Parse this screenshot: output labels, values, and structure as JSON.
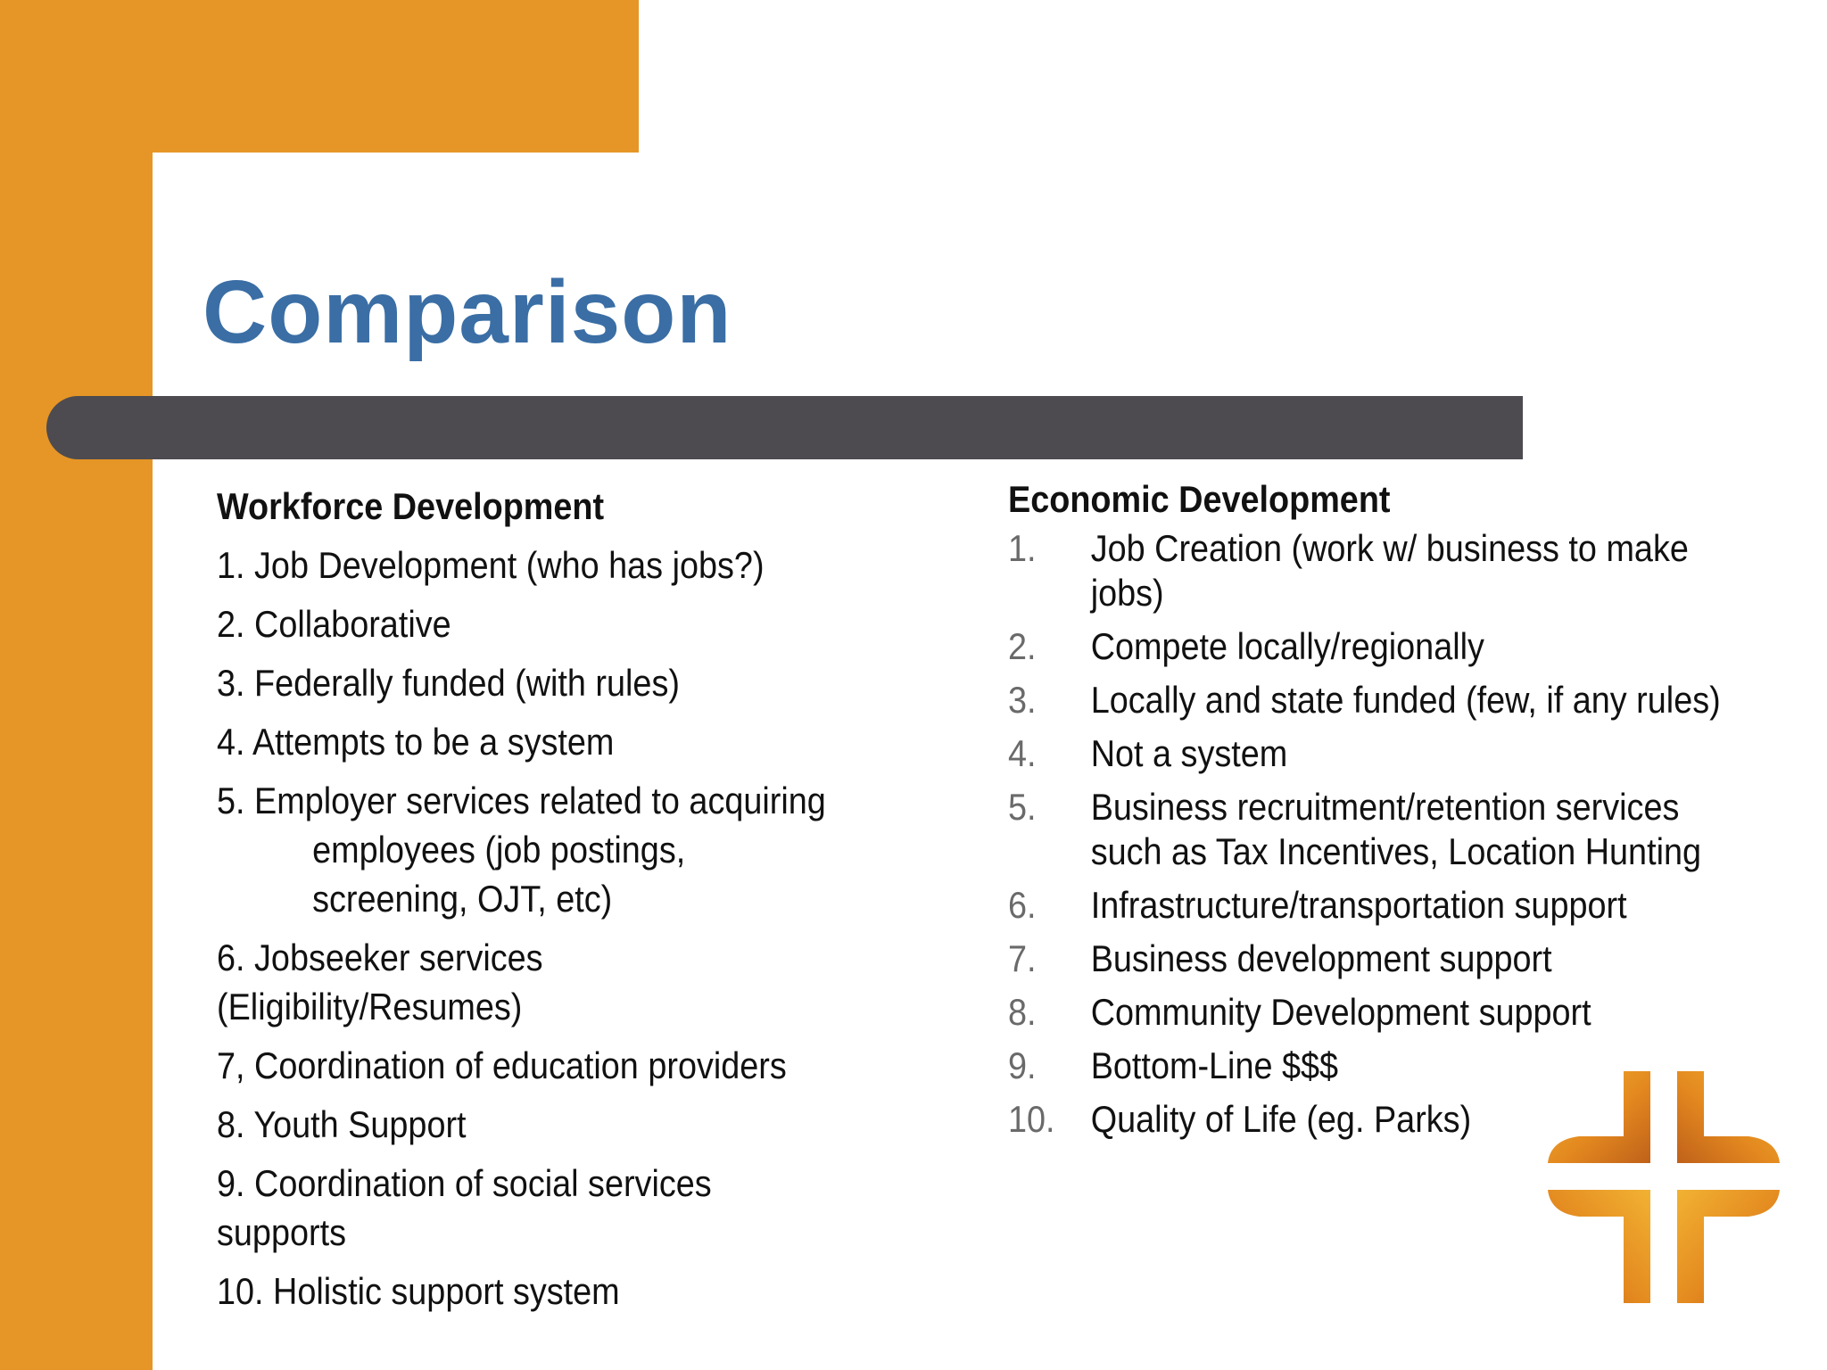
{
  "slide": {
    "title": "Comparison",
    "left_column": {
      "heading": "Workforce Development",
      "items": [
        {
          "lines": [
            "1. Job Development (who has jobs?)"
          ]
        },
        {
          "lines": [
            "2. Collaborative"
          ]
        },
        {
          "lines": [
            "3. Federally funded (with rules)"
          ]
        },
        {
          "lines": [
            "4. Attempts to be a system"
          ]
        },
        {
          "lines": [
            "5. Employer services related to acquiring",
            "employees (job postings,",
            "screening, OJT, etc)"
          ]
        },
        {
          "lines": [
            "6. Jobseeker services (Eligibility/Resumes)"
          ]
        },
        {
          "lines": [
            "7, Coordination of education providers"
          ]
        },
        {
          "lines": [
            "8. Youth Support"
          ]
        },
        {
          "lines": [
            "9. Coordination of social services supports"
          ]
        },
        {
          "lines": [
            "10. Holistic support system"
          ]
        }
      ]
    },
    "right_column": {
      "heading": "Economic Development",
      "items": [
        {
          "num": "1.",
          "lines": [
            "Job Creation (work w/ business to make",
            "jobs)"
          ]
        },
        {
          "num": "2.",
          "lines": [
            "Compete locally/regionally"
          ]
        },
        {
          "num": "3.",
          "lines": [
            "Locally and state funded (few, if any rules)"
          ]
        },
        {
          "num": "4.",
          "lines": [
            "Not a system"
          ]
        },
        {
          "num": "5.",
          "lines": [
            "Business recruitment/retention services",
            "such as Tax Incentives, Location Hunting"
          ]
        },
        {
          "num": "6.",
          "lines": [
            "Infrastructure/transportation support"
          ]
        },
        {
          "num": "7.",
          "lines": [
            "Business development support"
          ]
        },
        {
          "num": "8.",
          "lines": [
            "Community Development support"
          ]
        },
        {
          "num": "9.",
          "lines": [
            "Bottom-Line $$$"
          ]
        },
        {
          "num": "10.",
          "lines": [
            "Quality of Life (eg. Parks)"
          ]
        }
      ]
    },
    "logo_icon": "cross-logo-icon",
    "colors": {
      "accent_orange": "#E69626",
      "title_blue": "#3A6EA5",
      "bar_gray": "#4D4B50"
    }
  }
}
